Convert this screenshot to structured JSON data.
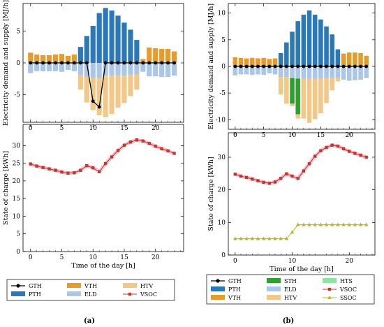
{
  "colors": {
    "GTH": "#000000",
    "PTH": "#2a78b8",
    "VTH": "#e69c2a",
    "ELD": "#aac6e8",
    "HTV": "#f2c888",
    "STH": "#2ca02c",
    "HTS": "#8fe3a0",
    "VSOC": "#c0392b",
    "VSOC_glow": "#f4b8d0",
    "SSOC": "#b7b81c"
  },
  "chart_data": [
    {
      "id": "a-top",
      "type": "bar",
      "xlabel": "",
      "ylabel": "Electricity demand and supply [MJ/h]",
      "ylim": [
        -9.3,
        9.3
      ],
      "yticks": [
        -5,
        0,
        5
      ],
      "xlim": [
        -1.2,
        24.5
      ],
      "xticks": [
        0,
        5,
        10,
        15,
        20
      ],
      "x": [
        0,
        1,
        2,
        3,
        4,
        5,
        6,
        7,
        8,
        9,
        10,
        11,
        12,
        13,
        14,
        15,
        16,
        17,
        18,
        19,
        20,
        21,
        22,
        23
      ],
      "series": [
        {
          "name": "PTH",
          "values": [
            0,
            0,
            0,
            0,
            0,
            0,
            0,
            0,
            2.5,
            4.2,
            5.8,
            7.8,
            8.6,
            8.2,
            7.4,
            6.3,
            5.2,
            3.6,
            0,
            0,
            0,
            0,
            0,
            0
          ]
        },
        {
          "name": "VTH",
          "values": [
            1.6,
            1.3,
            1.2,
            1.2,
            1.3,
            1.4,
            1.1,
            1.3,
            0,
            0,
            0,
            0,
            0,
            0,
            0,
            0,
            0,
            0,
            0.6,
            2.4,
            2.3,
            2.2,
            2.2,
            1.8
          ]
        },
        {
          "name": "ELD",
          "values": [
            -1.6,
            -1.3,
            -1.3,
            -1.3,
            -1.3,
            -1.4,
            -1.1,
            -1.3,
            -1.9,
            -2.2,
            -2.4,
            -2.4,
            -2.0,
            -2.0,
            -2.0,
            -2.0,
            -1.9,
            -1.8,
            -1.4,
            -2.1,
            -2.1,
            -2.2,
            -2.2,
            -2.0
          ]
        },
        {
          "name": "HTV",
          "values": [
            0,
            0,
            0,
            0,
            0,
            0,
            0,
            0,
            -2.3,
            -4.0,
            -5.0,
            -5.8,
            -6.5,
            -6.0,
            -5.0,
            -4.3,
            -3.3,
            -2.4,
            0,
            0,
            0,
            0,
            0,
            0
          ]
        },
        {
          "name": "GTH",
          "values": [
            0,
            0,
            0,
            0,
            0,
            0,
            0,
            0,
            0,
            0,
            -6.0,
            -6.9,
            0,
            0,
            0,
            0,
            0,
            0,
            0,
            0,
            0,
            0,
            0,
            0
          ]
        }
      ]
    },
    {
      "id": "a-bottom",
      "type": "line",
      "xlabel": "Time of the day [h]",
      "ylabel": "State of charge [kWh]",
      "ylim": [
        0,
        36
      ],
      "yticks": [
        0,
        5,
        10,
        15,
        20,
        25,
        30
      ],
      "xlim": [
        -1.2,
        24.5
      ],
      "xticks": [
        0,
        5,
        10,
        15,
        20
      ],
      "x": [
        0,
        1,
        2,
        3,
        4,
        5,
        6,
        7,
        8,
        9,
        10,
        11,
        12,
        13,
        14,
        15,
        16,
        17,
        18,
        19,
        20,
        21,
        22,
        23
      ],
      "series": [
        {
          "name": "VSOC",
          "values": [
            24.8,
            24.2,
            23.8,
            23.4,
            23.0,
            22.5,
            22.2,
            22.3,
            23.0,
            24.3,
            23.7,
            22.6,
            24.9,
            26.8,
            28.6,
            30.1,
            31.0,
            31.6,
            31.3,
            30.6,
            29.8,
            29.1,
            28.5,
            27.8
          ]
        }
      ]
    },
    {
      "id": "b-top",
      "type": "bar",
      "xlabel": "",
      "ylabel": "Electricity demand and supply [MJ/h]",
      "ylim": [
        -11.8,
        11.8
      ],
      "yticks": [
        -10,
        -5,
        0,
        5,
        10
      ],
      "xlim": [
        -1.2,
        24.5
      ],
      "xticks": [
        0,
        5,
        10,
        15,
        20
      ],
      "x": [
        0,
        1,
        2,
        3,
        4,
        5,
        6,
        7,
        8,
        9,
        10,
        11,
        12,
        13,
        14,
        15,
        16,
        17,
        18,
        19,
        20,
        21,
        22,
        23
      ],
      "series": [
        {
          "name": "PTH",
          "values": [
            0,
            0,
            0,
            0,
            0,
            0,
            0,
            0,
            2.5,
            4.5,
            6.5,
            8.5,
            9.7,
            10.5,
            9.7,
            8.8,
            7.5,
            6.0,
            3.2,
            0,
            0,
            0,
            0,
            0
          ]
        },
        {
          "name": "VTH",
          "values": [
            1.7,
            1.6,
            1.5,
            1.6,
            1.5,
            1.6,
            1.4,
            1.5,
            0,
            0,
            0,
            0,
            0,
            0,
            0,
            0,
            0,
            0,
            0,
            2.4,
            2.6,
            2.6,
            2.5,
            2.0
          ]
        },
        {
          "name": "ELD",
          "values": [
            -1.7,
            -1.5,
            -1.5,
            -1.6,
            -1.5,
            -1.6,
            -1.3,
            -1.5,
            -2.0,
            -2.0,
            -2.2,
            -2.3,
            -2.3,
            -2.3,
            -2.3,
            -2.3,
            -2.2,
            -2.2,
            -2.1,
            -2.5,
            -2.7,
            -2.6,
            -2.5,
            -2.2
          ]
        },
        {
          "name": "STH",
          "values": [
            0,
            0,
            0,
            0,
            0,
            0,
            0,
            0,
            0,
            0,
            -4.8,
            -6.7,
            0,
            0,
            0,
            0,
            0,
            0,
            0,
            0,
            0,
            0,
            0,
            0
          ]
        },
        {
          "name": "HTS",
          "values": [
            0,
            0,
            0,
            0,
            0,
            0,
            0,
            0,
            0,
            0,
            0,
            0,
            0,
            0,
            0,
            0,
            0,
            0,
            0,
            0,
            0,
            0,
            0,
            0
          ]
        },
        {
          "name": "HTV",
          "values": [
            0,
            0,
            0,
            0,
            0,
            0,
            0,
            0,
            -3.3,
            -5.0,
            -0.5,
            -0.8,
            -7.5,
            -8.3,
            -7.6,
            -6.5,
            -4.7,
            -2.3,
            -0.7,
            0,
            0,
            0,
            0,
            0
          ]
        },
        {
          "name": "GTH",
          "values": [
            0,
            0,
            0,
            0,
            0,
            0,
            0,
            0,
            0,
            0,
            0,
            0,
            0,
            0,
            0,
            0,
            0,
            0,
            0,
            0,
            0,
            0,
            0,
            0
          ]
        }
      ]
    },
    {
      "id": "b-bottom",
      "type": "line",
      "xlabel": "Time of the day [h]",
      "ylabel": "State of charge [kWh]",
      "ylim": [
        0,
        37.5
      ],
      "yticks": [
        0,
        10,
        20,
        30
      ],
      "xlim": [
        -1.2,
        24.5
      ],
      "xticks": [
        0,
        10,
        20
      ],
      "x": [
        0,
        1,
        2,
        3,
        4,
        5,
        6,
        7,
        8,
        9,
        10,
        11,
        12,
        13,
        14,
        15,
        16,
        17,
        18,
        19,
        20,
        21,
        22,
        23
      ],
      "series": [
        {
          "name": "VSOC",
          "values": [
            24.8,
            24.2,
            23.8,
            23.3,
            22.8,
            22.3,
            22.0,
            22.4,
            23.5,
            24.9,
            24.2,
            23.5,
            25.8,
            28.0,
            30.3,
            32.0,
            33.0,
            33.7,
            33.4,
            32.6,
            31.8,
            31.2,
            30.6,
            30.0
          ]
        },
        {
          "name": "SSOC",
          "values": [
            5,
            5,
            5,
            5,
            5,
            5,
            5,
            5,
            5,
            5,
            7,
            9.3,
            9.3,
            9.3,
            9.3,
            9.3,
            9.3,
            9.3,
            9.3,
            9.3,
            9.3,
            9.3,
            9.3,
            9.3
          ]
        }
      ]
    }
  ],
  "legend_a": [
    {
      "key": "GTH",
      "label": "GTH",
      "kind": "line-circle"
    },
    {
      "key": "PTH",
      "label": "PTH",
      "kind": "patch"
    },
    {
      "key": "VTH",
      "label": "VTH",
      "kind": "patch"
    },
    {
      "key": "ELD",
      "label": "ELD",
      "kind": "patch"
    },
    {
      "key": "HTV",
      "label": "HTV",
      "kind": "patch"
    },
    {
      "key": "VSOC",
      "label": "VSOC",
      "kind": "line-square"
    }
  ],
  "legend_b": [
    {
      "key": "GTH",
      "label": "GTH",
      "kind": "line-circle"
    },
    {
      "key": "PTH",
      "label": "PTH",
      "kind": "patch"
    },
    {
      "key": "VTH",
      "label": "VTH",
      "kind": "patch"
    },
    {
      "key": "STH",
      "label": "STH",
      "kind": "patch"
    },
    {
      "key": "ELD",
      "label": "ELD",
      "kind": "patch"
    },
    {
      "key": "HTV",
      "label": "HTV",
      "kind": "patch"
    },
    {
      "key": "HTS",
      "label": "HTS",
      "kind": "patch"
    },
    {
      "key": "VSOC",
      "label": "VSOC",
      "kind": "line-square"
    },
    {
      "key": "SSOC",
      "label": "SSOC",
      "kind": "line-triangle"
    }
  ],
  "panel_labels": {
    "a": "(a)",
    "b": "(b)"
  }
}
